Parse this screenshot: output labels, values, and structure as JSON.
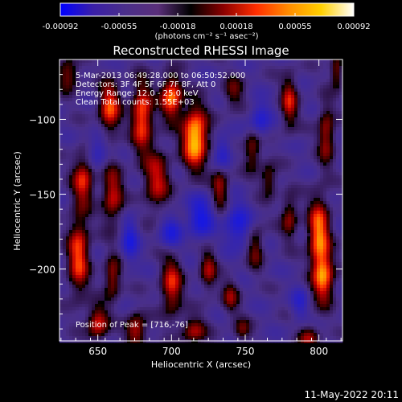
{
  "chart_data": {
    "type": "heatmap",
    "title": "Reconstructed RHESSI Image",
    "xlabel": "Heliocentric X (arcsec)",
    "ylabel": "Heliocentric Y (arcsec)",
    "xlim": [
      624,
      816
    ],
    "ylim": [
      -248,
      -60
    ],
    "x_ticks": [
      650,
      700,
      750,
      800
    ],
    "y_ticks": [
      -100,
      -150,
      -200
    ],
    "colorbar": {
      "min": -0.00092,
      "max": 0.00092,
      "ticks": [
        "-0.00092",
        "-0.00055",
        "-0.00018",
        "0.00018",
        "0.00055",
        "0.00092"
      ],
      "unit_label": "(photons cm⁻² s⁻¹ asec⁻²)",
      "colors": [
        "#0000ff",
        "#3a1fa8",
        "#4b2f8a",
        "#5a2f7a",
        "#000000",
        "#8b0000",
        "#ff2d00",
        "#ff8c00",
        "#ffd000",
        "#ffffff"
      ]
    },
    "annotations": [
      "5-Mar-2013 06:49:28.000 to 06:50:52.000",
      "Detectors: 3F 4F 5F 6F 7F 8F, Att 0",
      "Energy Range: 12.0 - 25.0 keV",
      "Clean     Total counts: 1.55E+03"
    ],
    "peak_label": "Position of Peak = [716,-76]",
    "peak": {
      "x": 716,
      "y": -76
    },
    "sources": [
      {
        "x": 716,
        "y": -112,
        "sx": 6,
        "sy": 14,
        "amp": 1.0
      },
      {
        "x": 700,
        "y": -85,
        "sx": 5,
        "sy": 10,
        "amp": 0.8
      },
      {
        "x": 680,
        "y": -98,
        "sx": 5,
        "sy": 16,
        "amp": 0.75
      },
      {
        "x": 658,
        "y": -92,
        "sx": 5,
        "sy": 12,
        "amp": 0.7
      },
      {
        "x": 640,
        "y": -140,
        "sx": 5,
        "sy": 12,
        "amp": 0.6
      },
      {
        "x": 660,
        "y": -150,
        "sx": 5,
        "sy": 14,
        "amp": 0.55
      },
      {
        "x": 690,
        "y": -140,
        "sx": 6,
        "sy": 14,
        "amp": 0.55
      },
      {
        "x": 733,
        "y": -145,
        "sx": 4,
        "sy": 10,
        "amp": 0.5
      },
      {
        "x": 755,
        "y": -120,
        "sx": 4,
        "sy": 10,
        "amp": 0.45
      },
      {
        "x": 780,
        "y": -88,
        "sx": 4,
        "sy": 12,
        "amp": 0.55
      },
      {
        "x": 805,
        "y": -110,
        "sx": 4,
        "sy": 14,
        "amp": 0.5
      },
      {
        "x": 800,
        "y": -175,
        "sx": 5,
        "sy": 16,
        "amp": 0.8
      },
      {
        "x": 803,
        "y": -205,
        "sx": 5,
        "sy": 12,
        "amp": 0.75
      },
      {
        "x": 780,
        "y": -165,
        "sx": 4,
        "sy": 10,
        "amp": 0.45
      },
      {
        "x": 757,
        "y": -185,
        "sx": 4,
        "sy": 10,
        "amp": 0.4
      },
      {
        "x": 637,
        "y": -190,
        "sx": 5,
        "sy": 18,
        "amp": 0.7
      },
      {
        "x": 660,
        "y": -205,
        "sx": 4,
        "sy": 10,
        "amp": 0.5
      },
      {
        "x": 650,
        "y": -235,
        "sx": 5,
        "sy": 8,
        "amp": 0.6
      },
      {
        "x": 676,
        "y": -240,
        "sx": 5,
        "sy": 8,
        "amp": 0.55
      },
      {
        "x": 700,
        "y": -210,
        "sx": 5,
        "sy": 14,
        "amp": 0.6
      },
      {
        "x": 725,
        "y": -200,
        "sx": 4,
        "sy": 10,
        "amp": 0.45
      },
      {
        "x": 715,
        "y": -240,
        "sx": 6,
        "sy": 6,
        "amp": 0.5
      },
      {
        "x": 740,
        "y": -218,
        "sx": 4,
        "sy": 8,
        "amp": 0.4
      },
      {
        "x": 748,
        "y": -240,
        "sx": 4,
        "sy": 6,
        "amp": 0.35
      },
      {
        "x": 793,
        "y": -245,
        "sx": 5,
        "sy": 6,
        "amp": 0.45
      },
      {
        "x": 812,
        "y": -68,
        "sx": 3,
        "sy": 8,
        "amp": 0.45
      },
      {
        "x": 630,
        "y": -70,
        "sx": 5,
        "sy": 8,
        "amp": 0.45
      },
      {
        "x": 742,
        "y": -82,
        "sx": 5,
        "sy": 8,
        "amp": 0.35
      },
      {
        "x": 766,
        "y": -140,
        "sx": 4,
        "sy": 8,
        "amp": 0.4
      },
      {
        "x": 787,
        "y": -222,
        "sx": 4,
        "sy": 8,
        "amp": -0.3
      },
      {
        "x": 720,
        "y": -165,
        "sx": 6,
        "sy": 10,
        "amp": -0.55
      },
      {
        "x": 700,
        "y": -175,
        "sx": 5,
        "sy": 8,
        "amp": -0.45
      },
      {
        "x": 745,
        "y": -170,
        "sx": 6,
        "sy": 10,
        "amp": -0.5
      },
      {
        "x": 760,
        "y": -100,
        "sx": 5,
        "sy": 8,
        "amp": -0.45
      },
      {
        "x": 672,
        "y": -180,
        "sx": 4,
        "sy": 10,
        "amp": -0.45
      },
      {
        "x": 735,
        "y": -122,
        "sx": 4,
        "sy": 8,
        "amp": -0.4
      },
      {
        "x": 650,
        "y": -120,
        "sx": 5,
        "sy": 8,
        "amp": -0.35
      }
    ]
  },
  "footer": {
    "timestamp": "11-May-2022 20:11"
  }
}
